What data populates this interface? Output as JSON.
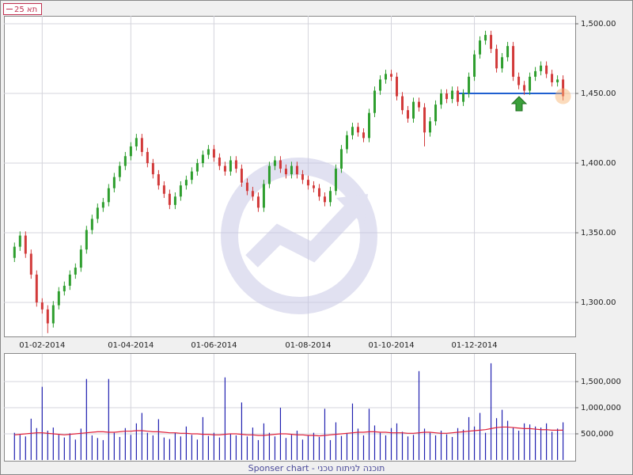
{
  "chart_data": [
    {
      "type": "candlestick",
      "title": "תא 25",
      "footer": "Sponser chart - תוכנה לניתוח טכני",
      "up_color": "#2e9e2e",
      "down_color": "#d23a3a",
      "level": 1450,
      "level_color": "#1f5fd0",
      "xlim": [
        -1.9,
        101.2
      ],
      "xticks": [
        {
          "value": 5,
          "label": "01-02-2014"
        },
        {
          "value": 21,
          "label": "01-04-2014"
        },
        {
          "value": 36,
          "label": "01-06-2014"
        },
        {
          "value": 53,
          "label": "01-08-2014"
        },
        {
          "value": 68,
          "label": "01-10-2014"
        },
        {
          "value": 83,
          "label": "01-12-2014"
        }
      ],
      "ylim": [
        1275.6,
        1505.7
      ],
      "yticks": [
        {
          "value": 1300,
          "label": "1,300.00"
        },
        {
          "value": 1350,
          "label": "1,350.00"
        },
        {
          "value": 1400,
          "label": "1,400.00"
        },
        {
          "value": 1450,
          "label": "1,450.00"
        },
        {
          "value": 1500,
          "label": "1,500.00"
        }
      ],
      "grid": true,
      "open": [
        1332,
        1340,
        1348,
        1335,
        1320,
        1300,
        1295,
        1285,
        1298,
        1308,
        1312,
        1320,
        1325,
        1338,
        1352,
        1360,
        1368,
        1372,
        1382,
        1390,
        1398,
        1405,
        1412,
        1418,
        1408,
        1400,
        1392,
        1384,
        1378,
        1370,
        1376,
        1384,
        1388,
        1394,
        1400,
        1406,
        1410,
        1404,
        1398,
        1394,
        1402,
        1396,
        1386,
        1380,
        1376,
        1368,
        1385,
        1398,
        1402,
        1396,
        1392,
        1398,
        1392,
        1388,
        1384,
        1382,
        1376,
        1372,
        1380,
        1396,
        1410,
        1420,
        1426,
        1422,
        1418,
        1436,
        1452,
        1460,
        1464,
        1462,
        1448,
        1438,
        1432,
        1444,
        1440,
        1422,
        1430,
        1442,
        1450,
        1446,
        1452,
        1444,
        1450,
        1462,
        1478,
        1488,
        1492,
        1482,
        1468,
        1476,
        1484,
        1462,
        1456,
        1452,
        1462,
        1466,
        1470,
        1464,
        1458,
        1460
      ],
      "high": [
        1343,
        1351,
        1351,
        1338,
        1323,
        1303,
        1298,
        1301,
        1311,
        1315,
        1323,
        1328,
        1341,
        1355,
        1363,
        1371,
        1375,
        1385,
        1393,
        1401,
        1408,
        1415,
        1421,
        1421,
        1411,
        1403,
        1395,
        1387,
        1381,
        1379,
        1387,
        1391,
        1397,
        1403,
        1409,
        1413,
        1413,
        1407,
        1401,
        1405,
        1405,
        1399,
        1389,
        1383,
        1379,
        1388,
        1401,
        1405,
        1405,
        1399,
        1401,
        1401,
        1395,
        1391,
        1387,
        1385,
        1379,
        1383,
        1399,
        1413,
        1423,
        1429,
        1429,
        1425,
        1439,
        1455,
        1463,
        1467,
        1467,
        1465,
        1451,
        1441,
        1447,
        1447,
        1443,
        1433,
        1445,
        1453,
        1453,
        1455,
        1455,
        1453,
        1465,
        1481,
        1491,
        1495,
        1495,
        1485,
        1479,
        1487,
        1487,
        1465,
        1459,
        1465,
        1469,
        1473,
        1473,
        1467,
        1463,
        1463
      ],
      "low": [
        1329,
        1337,
        1332,
        1317,
        1297,
        1292,
        1278,
        1282,
        1295,
        1305,
        1309,
        1317,
        1322,
        1335,
        1349,
        1357,
        1365,
        1369,
        1379,
        1387,
        1395,
        1402,
        1409,
        1405,
        1397,
        1389,
        1381,
        1375,
        1367,
        1367,
        1373,
        1381,
        1385,
        1391,
        1397,
        1403,
        1401,
        1395,
        1391,
        1391,
        1393,
        1383,
        1377,
        1373,
        1365,
        1365,
        1382,
        1395,
        1393,
        1389,
        1389,
        1389,
        1385,
        1381,
        1379,
        1373,
        1369,
        1369,
        1377,
        1393,
        1407,
        1417,
        1419,
        1415,
        1415,
        1433,
        1449,
        1457,
        1459,
        1445,
        1435,
        1429,
        1429,
        1437,
        1412,
        1419,
        1427,
        1439,
        1443,
        1443,
        1441,
        1441,
        1447,
        1459,
        1475,
        1485,
        1479,
        1465,
        1465,
        1473,
        1459,
        1453,
        1449,
        1449,
        1459,
        1463,
        1461,
        1455,
        1455,
        1445
      ],
      "close": [
        1340,
        1348,
        1335,
        1320,
        1300,
        1295,
        1285,
        1298,
        1308,
        1312,
        1320,
        1325,
        1338,
        1352,
        1360,
        1368,
        1372,
        1382,
        1390,
        1398,
        1405,
        1412,
        1418,
        1408,
        1400,
        1392,
        1384,
        1378,
        1370,
        1376,
        1384,
        1388,
        1394,
        1400,
        1406,
        1410,
        1404,
        1398,
        1394,
        1402,
        1396,
        1386,
        1380,
        1376,
        1368,
        1385,
        1398,
        1402,
        1396,
        1392,
        1398,
        1392,
        1388,
        1384,
        1382,
        1376,
        1372,
        1380,
        1396,
        1410,
        1420,
        1426,
        1422,
        1418,
        1436,
        1452,
        1460,
        1464,
        1462,
        1448,
        1438,
        1432,
        1444,
        1440,
        1422,
        1430,
        1442,
        1450,
        1446,
        1452,
        1444,
        1450,
        1462,
        1478,
        1488,
        1492,
        1482,
        1468,
        1476,
        1484,
        1462,
        1456,
        1452,
        1462,
        1466,
        1470,
        1464,
        1458,
        1460,
        1448
      ]
    },
    {
      "type": "bar",
      "color": "#2020b0",
      "ma_color": "#e0203a",
      "ylim": [
        0,
        2030000
      ],
      "yticks": [
        {
          "value": 500000,
          "label": "500,000"
        },
        {
          "value": 1000000,
          "label": "1,000,000"
        },
        {
          "value": 1500000,
          "label": "1,500,000"
        }
      ],
      "values": [
        520000,
        480000,
        450000,
        790000,
        610000,
        1400000,
        560000,
        620000,
        480000,
        430000,
        510000,
        390000,
        600000,
        1550000,
        470000,
        420000,
        380000,
        1550000,
        520000,
        440000,
        610000,
        480000,
        700000,
        900000,
        520000,
        470000,
        780000,
        430000,
        400000,
        520000,
        450000,
        640000,
        480000,
        390000,
        820000,
        460000,
        520000,
        430000,
        1580000,
        500000,
        470000,
        1100000,
        450000,
        620000,
        380000,
        700000,
        520000,
        450000,
        1000000,
        420000,
        480000,
        560000,
        390000,
        470000,
        520000,
        440000,
        980000,
        380000,
        720000,
        460000,
        510000,
        1080000,
        600000,
        470000,
        980000,
        660000,
        520000,
        470000,
        610000,
        700000,
        540000,
        450000,
        480000,
        1700000,
        600000,
        520000,
        470000,
        560000,
        490000,
        440000,
        610000,
        580000,
        820000,
        640000,
        900000,
        520000,
        1850000,
        800000,
        960000,
        750000,
        620000,
        560000,
        700000,
        680000,
        640000,
        620000,
        700000,
        540000,
        600000,
        720000
      ],
      "moving_average": [
        480000,
        490000,
        500000,
        510000,
        520000,
        520000,
        510000,
        500000,
        490000,
        480000,
        490000,
        500000,
        510000,
        520000,
        530000,
        540000,
        540000,
        530000,
        530000,
        540000,
        550000,
        550000,
        560000,
        560000,
        550000,
        540000,
        540000,
        530000,
        520000,
        520000,
        510000,
        510000,
        500000,
        500000,
        490000,
        490000,
        480000,
        480000,
        490000,
        500000,
        500000,
        490000,
        480000,
        480000,
        470000,
        470000,
        480000,
        490000,
        500000,
        500000,
        490000,
        480000,
        480000,
        470000,
        470000,
        460000,
        470000,
        480000,
        490000,
        500000,
        510000,
        520000,
        530000,
        530000,
        540000,
        540000,
        530000,
        530000,
        520000,
        520000,
        520000,
        510000,
        510000,
        520000,
        530000,
        530000,
        520000,
        510000,
        510000,
        520000,
        530000,
        540000,
        550000,
        560000,
        570000,
        580000,
        600000,
        620000,
        630000,
        630000,
        620000,
        610000,
        600000,
        600000,
        590000,
        580000,
        580000,
        570000,
        570000,
        570000
      ]
    }
  ]
}
